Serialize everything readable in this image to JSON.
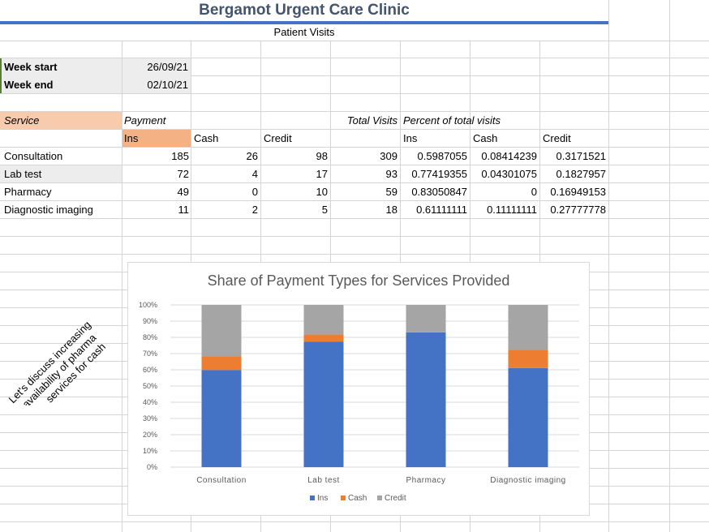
{
  "header": {
    "title": "Bergamot Urgent Care Clinic",
    "subtitle": "Patient Visits"
  },
  "week": {
    "start_label": "Week start",
    "start_value": "26/09/21",
    "end_label": "Week end",
    "end_value": "02/10/21"
  },
  "table": {
    "service_header": "Service",
    "payment_header": "Payment",
    "total_header": "Total Visits",
    "percent_header": "Percent of total visits",
    "sub_headers": [
      "Ins",
      "Cash",
      "Credit",
      "Ins",
      "Cash",
      "Credit"
    ],
    "rows": [
      {
        "service": "Consultation",
        "ins": "185",
        "cash": "26",
        "credit": "98",
        "total": "309",
        "p_ins": "0.5987055",
        "p_cash": "0.08414239",
        "p_credit": "0.3171521"
      },
      {
        "service": "Lab test",
        "ins": "72",
        "cash": "4",
        "credit": "17",
        "total": "93",
        "p_ins": "0.77419355",
        "p_cash": "0.04301075",
        "p_credit": "0.1827957"
      },
      {
        "service": "Pharmacy",
        "ins": "49",
        "cash": "0",
        "credit": "10",
        "total": "59",
        "p_ins": "0.83050847",
        "p_cash": "0",
        "p_credit": "0.16949153"
      },
      {
        "service": "Diagnostic imaging",
        "ins": "11",
        "cash": "2",
        "credit": "5",
        "total": "18",
        "p_ins": "0.61111111",
        "p_cash": "0.11111111",
        "p_credit": "0.27777778"
      }
    ]
  },
  "note": {
    "lines": [
      "Let's discuss increasing",
      "availability of pharma",
      "services for cash"
    ]
  },
  "chart_data": {
    "type": "bar",
    "stacked": "100%",
    "title": "Share of Payment Types for Services Provided",
    "categories": [
      "Consultation",
      "Lab test",
      "Pharmacy",
      "Diagnostic imaging"
    ],
    "series": [
      {
        "name": "Ins",
        "color": "#4472c4",
        "values": [
          0.5987055,
          0.77419355,
          0.83050847,
          0.61111111
        ]
      },
      {
        "name": "Cash",
        "color": "#ed7d31",
        "values": [
          0.08414239,
          0.04301075,
          0,
          0.11111111
        ]
      },
      {
        "name": "Credit",
        "color": "#a5a5a5",
        "values": [
          0.3171521,
          0.1827957,
          0.16949153,
          0.27777778
        ]
      }
    ],
    "y_ticks": [
      "0%",
      "10%",
      "20%",
      "30%",
      "40%",
      "50%",
      "60%",
      "70%",
      "80%",
      "90%",
      "100%"
    ],
    "ylim": [
      0,
      1
    ],
    "legend": "bottom",
    "grid": true
  }
}
